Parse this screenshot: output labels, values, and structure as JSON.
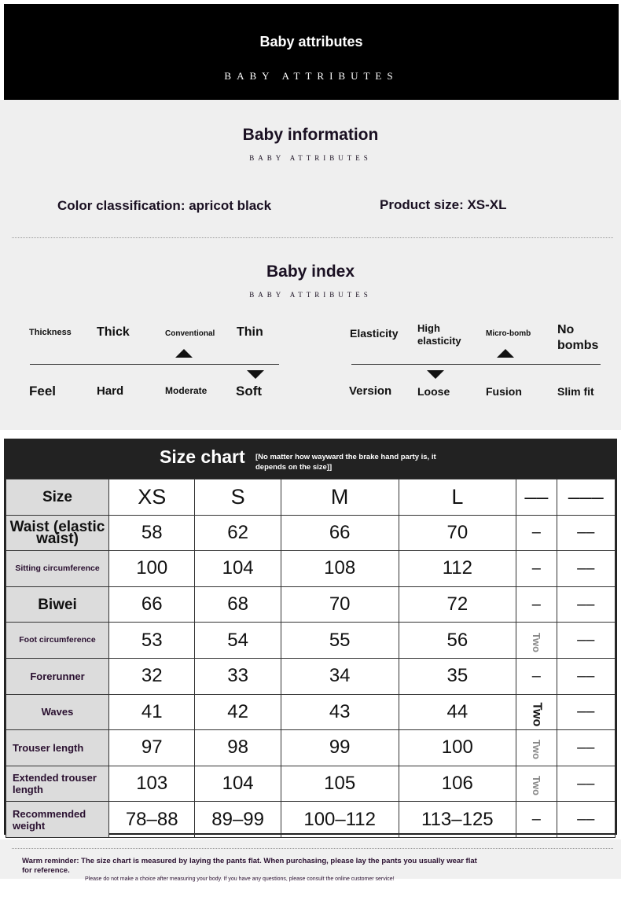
{
  "banner": {
    "title": "Baby attributes",
    "subtitle": "BABY ATTRIBUTES"
  },
  "info": {
    "title": "Baby information",
    "subtitle": "BABY ATTRIBUTES",
    "color": "Color classification: apricot black",
    "size": "Product size: XS-XL"
  },
  "index": {
    "title": "Baby index",
    "subtitle": "BABY ATTRIBUTES",
    "left": {
      "top_label": "Thickness",
      "top_options": [
        "Thick",
        "Conventional",
        "Thin"
      ],
      "top_selected": "Conventional",
      "bottom_label": "Feel",
      "bottom_options": [
        "Hard",
        "Moderate",
        "Soft"
      ],
      "bottom_selected": "Soft"
    },
    "right": {
      "top_label": "Elasticity",
      "top_options": [
        "High elasticity",
        "Micro-bomb",
        "No bombs"
      ],
      "top_selected": "Micro-bomb",
      "bottom_label": "Version",
      "bottom_options": [
        "Loose",
        "Fusion",
        "Slim fit"
      ],
      "bottom_selected": "Loose"
    }
  },
  "size_chart": {
    "title": "Size chart",
    "note": "[No matter how wayward the brake hand party is, it depends on the size]]",
    "header": [
      "Size",
      "XS",
      "S",
      "M",
      "L",
      "––",
      "–––"
    ],
    "rows": [
      {
        "label": "Waist (elastic waist)",
        "values": [
          "58",
          "62",
          "66",
          "70",
          "–",
          "––"
        ]
      },
      {
        "label": "Sitting circumference",
        "values": [
          "100",
          "104",
          "108",
          "112",
          "–",
          "––"
        ]
      },
      {
        "label": "Biwei",
        "values": [
          "66",
          "68",
          "70",
          "72",
          "–",
          "––"
        ]
      },
      {
        "label": "Foot circumference",
        "values": [
          "53",
          "54",
          "55",
          "56",
          "Two",
          "––"
        ]
      },
      {
        "label": "Forerunner",
        "values": [
          "32",
          "33",
          "34",
          "35",
          "–",
          "––"
        ]
      },
      {
        "label": "Waves",
        "values": [
          "41",
          "42",
          "43",
          "44",
          "Two",
          "––"
        ]
      },
      {
        "label": "Trouser length",
        "values": [
          "97",
          "98",
          "99",
          "100",
          "Two",
          "––"
        ]
      },
      {
        "label": "Extended trouser length",
        "values": [
          "103",
          "104",
          "105",
          "106",
          "Two",
          "––"
        ]
      },
      {
        "label": "Recommended weight",
        "values": [
          "78–88",
          "89–99",
          "100–112",
          "113–125",
          "–",
          "––"
        ]
      }
    ]
  },
  "reminder": {
    "line1": "Warm reminder: The size chart is measured by laying the pants flat. When purchasing, please lay the pants you usually wear flat for reference.",
    "line2": "Please do not make a choice after measuring your body. If you have any questions, please consult the online customer service!"
  }
}
